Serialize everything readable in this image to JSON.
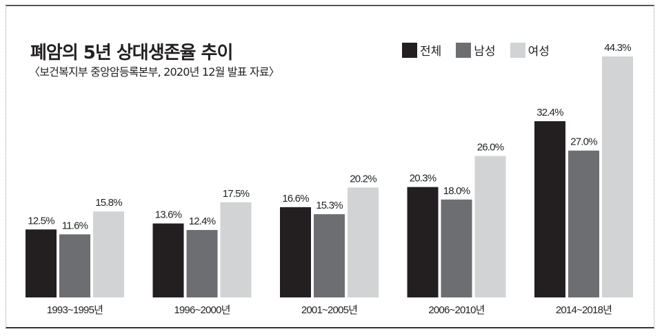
{
  "chart_data": {
    "type": "bar",
    "title": "폐암의 5년 상대생존율 추이",
    "subtitle": "〈보건복지부 중앙암등록본부, 2020년 12월 발표 자료〉",
    "categories": [
      "1993~1995년",
      "1996~2000년",
      "2001~2005년",
      "2006~2010년",
      "2014~2018년"
    ],
    "series": [
      {
        "name": "전체",
        "color": "#231f20",
        "values": [
          12.5,
          13.6,
          16.6,
          20.3,
          32.4
        ]
      },
      {
        "name": "남성",
        "color": "#6d6e71",
        "values": [
          11.6,
          12.4,
          15.3,
          18.0,
          27.0
        ]
      },
      {
        "name": "여성",
        "color": "#d1d3d4",
        "values": [
          15.8,
          17.5,
          20.2,
          26.0,
          44.3
        ]
      }
    ],
    "value_format": "%",
    "ylim": [
      0,
      45
    ],
    "grid": false,
    "legend_position": "top-right"
  }
}
